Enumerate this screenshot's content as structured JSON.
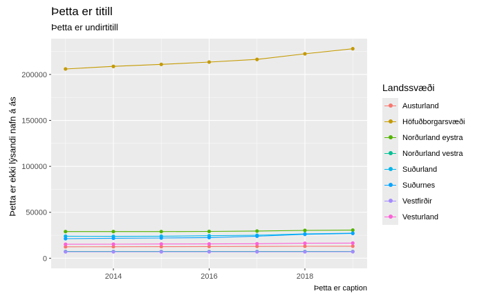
{
  "title": "Þetta er titill",
  "subtitle": "Þetta er undirtitill",
  "caption": "Þetta er caption",
  "chart_data": {
    "type": "line",
    "title": "Þetta er titill",
    "subtitle": "Þetta er undirtitill",
    "caption": "Þetta er caption",
    "xlabel": "",
    "ylabel": "Þetta er ekki lýsandi nafn á ás",
    "x": [
      2013,
      2014,
      2015,
      2016,
      2017,
      2018,
      2019
    ],
    "xlim": [
      2012.7,
      2019.3
    ],
    "ylim": [
      -11000,
      239000
    ],
    "x_ticks": [
      2014,
      2016,
      2018
    ],
    "y_ticks": [
      0,
      50000,
      100000,
      150000,
      200000
    ],
    "grid": true,
    "legend_position": "right",
    "legend_title": "Landssvæði",
    "series": [
      {
        "name": "Austurland",
        "color": "#F8766D",
        "values": [
          12400,
          12500,
          12600,
          12700,
          12900,
          13000,
          13100
        ]
      },
      {
        "name": "Höfuðborgarsvæði",
        "color": "#C49A00",
        "values": [
          206000,
          208800,
          211000,
          213500,
          216400,
          222500,
          228000
        ]
      },
      {
        "name": "Norðurland eystra",
        "color": "#53B400",
        "values": [
          29000,
          29000,
          29000,
          29200,
          29600,
          30300,
          30600
        ]
      },
      {
        "name": "Norðurland vestra",
        "color": "#00C094",
        "values": [
          7300,
          7300,
          7300,
          7300,
          7300,
          7300,
          7300
        ]
      },
      {
        "name": "Suðurland",
        "color": "#00B6EB",
        "values": [
          24000,
          23800,
          24000,
          24500,
          25000,
          26500,
          27300
        ]
      },
      {
        "name": "Suðurnes",
        "color": "#06A4FF",
        "values": [
          21300,
          21700,
          22000,
          22500,
          24000,
          26000,
          27000
        ]
      },
      {
        "name": "Vestfirðir",
        "color": "#A58AFF",
        "values": [
          7000,
          7000,
          7000,
          7000,
          7000,
          7000,
          7100
        ]
      },
      {
        "name": "Vesturland",
        "color": "#FB61D7",
        "values": [
          15200,
          15300,
          15500,
          15600,
          15800,
          16300,
          16500
        ]
      }
    ]
  }
}
